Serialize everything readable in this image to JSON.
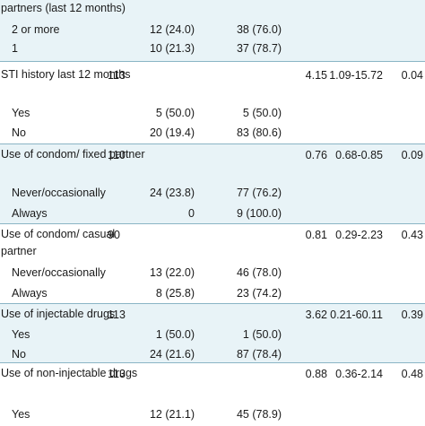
{
  "table": {
    "groups": [
      {
        "label": "partners (last 12 months)",
        "n": "",
        "or": "",
        "ci": "",
        "p": "",
        "rows": [
          {
            "label": "2 or more",
            "c1": "12 (24.0)",
            "c2": "38 (76.0)"
          },
          {
            "label": "1",
            "c1": "10 (21.3)",
            "c2": "37 (78.7)"
          }
        ]
      },
      {
        "label": "STI history last 12 months",
        "n": "113",
        "or": "4.15",
        "ci": "1.09-15.72",
        "p": "0.04",
        "rows": [
          {
            "label": "Yes",
            "c1": "5 (50.0)",
            "c2": "5 (50.0)"
          },
          {
            "label": "No",
            "c1": "20 (19.4)",
            "c2": "83 (80.6)"
          }
        ]
      },
      {
        "label": "Use of condom/ fixed partner",
        "n": "110",
        "or": "0.76",
        "ci": "0.68-0.85",
        "p": "0.09",
        "rows": [
          {
            "label": "Never/occasionally",
            "c1": "24 (23.8)",
            "c2": "77 (76.2)"
          },
          {
            "label": "Always",
            "c1": "0",
            "c2": "9 (100.0)"
          }
        ]
      },
      {
        "label": "Use of condom/ casual partner",
        "n": "90",
        "or": "0.81",
        "ci": "0.29-2.23",
        "p": "0.43",
        "rows": [
          {
            "label": "Never/occasionally",
            "c1": "13 (22.0)",
            "c2": "46 (78.0)"
          },
          {
            "label": "Always",
            "c1": "8 (25.8)",
            "c2": "23 (74.2)"
          }
        ]
      },
      {
        "label": "Use of injectable drugs",
        "n": "113",
        "or": "3.62",
        "ci": "0.21-60.11",
        "p": "0.39",
        "rows": [
          {
            "label": "Yes",
            "c1": "1 (50.0)",
            "c2": "1 (50.0)"
          },
          {
            "label": "No",
            "c1": "24 (21.6)",
            "c2": "87 (78.4)"
          }
        ]
      },
      {
        "label": "Use of non-injectable drugs",
        "n": "113",
        "or": "0.88",
        "ci": "0.36-2.14",
        "p": "0.48",
        "rows": [
          {
            "label": "Yes",
            "c1": "12 (21.1)",
            "c2": "45 (78.9)"
          }
        ]
      }
    ]
  }
}
